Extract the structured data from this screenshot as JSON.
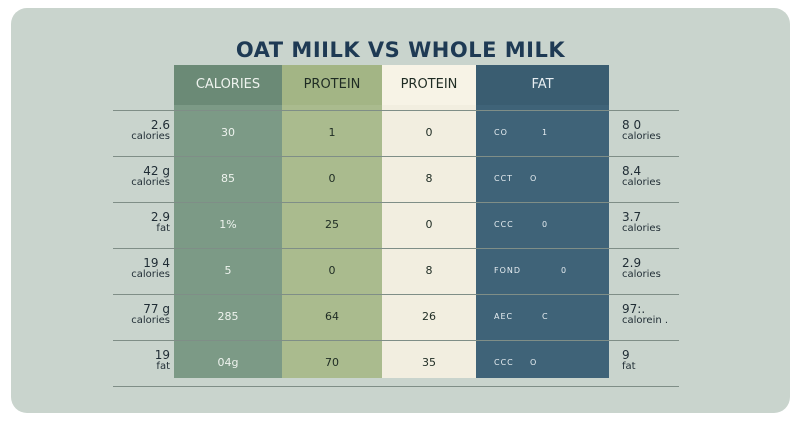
{
  "title": "OAT MIILK VS   WHOLE MILK",
  "headers": [
    "CALORIES",
    "PROTEIN",
    "PROTEIN",
    "FAT"
  ],
  "rows": [
    {
      "left_value": "2.6",
      "left_unit": "calories",
      "cells": [
        "30",
        "1",
        "0"
      ],
      "fat_code": "CO",
      "fat_value": "1",
      "right_value": "8 0",
      "right_unit": "calories"
    },
    {
      "left_value": "42 g",
      "left_unit": "calories",
      "cells": [
        "85",
        "0",
        "8"
      ],
      "fat_code": "CCT",
      "fat_value": "O",
      "right_value": "8.4",
      "right_unit": "calories"
    },
    {
      "left_value": "2.9",
      "left_unit": "fat",
      "cells": [
        "1%",
        "25",
        "0"
      ],
      "fat_code": "CCC",
      "fat_value": "0",
      "right_value": "3.7",
      "right_unit": "calories"
    },
    {
      "left_value": "19 4",
      "left_unit": "calories",
      "cells": [
        "5",
        "0",
        "8"
      ],
      "fat_code": "FOND",
      "fat_value": "0",
      "right_value": "2.9",
      "right_unit": "calories"
    },
    {
      "left_value": "77 g",
      "left_unit": "calories",
      "cells": [
        "285",
        "64",
        "26"
      ],
      "fat_code": "AEC",
      "fat_value": "C",
      "right_value": "97:.",
      "right_unit": "calorein ."
    },
    {
      "left_value": "19",
      "left_unit": "fat",
      "cells": [
        "04g",
        "70",
        "35"
      ],
      "fat_code": "CCC",
      "fat_value": "O",
      "right_value": "9",
      "right_unit": "fat"
    }
  ],
  "colors": {
    "calories_col": "#7c9a86",
    "protein_col": "#aabb8e",
    "protein2_col": "#f2eee0",
    "fat_col": "#3f6378",
    "title": "#1e3a54",
    "background": "#c9d4cd"
  },
  "chart_data": {
    "type": "table",
    "title": "OAT MIILK VS   WHOLE MILK",
    "columns": [
      "CALORIES",
      "PROTEIN",
      "PROTEIN",
      "FAT"
    ],
    "row_labels_left": [
      "2.6 calories",
      "42 g calories",
      "2.9 fat",
      "19 4 calories",
      "77 g calories",
      "19 fat"
    ],
    "row_labels_right": [
      "8 0 calories",
      "8.4 calories",
      "3.7 calories",
      "2.9 calories",
      "97:. calorein .",
      "9 fat"
    ],
    "cells": [
      [
        "30",
        "1",
        "0",
        "CO 1"
      ],
      [
        "85",
        "0",
        "8",
        "CCT O"
      ],
      [
        "1%",
        "25",
        "0",
        "CCC 0"
      ],
      [
        "5",
        "0",
        "8",
        "FOND 0"
      ],
      [
        "285",
        "64",
        "26",
        "AEC C"
      ],
      [
        "04g",
        "70",
        "35",
        "CCC O"
      ]
    ]
  }
}
